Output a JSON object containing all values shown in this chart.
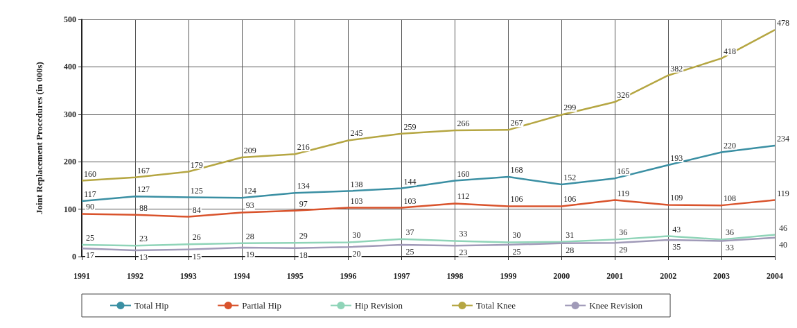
{
  "chart_data": {
    "type": "line",
    "ylabel": "Joint Replacement Procedures (in 000s)",
    "categories": [
      "1991",
      "1992",
      "1993",
      "1994",
      "1995",
      "1996",
      "1997",
      "1998",
      "1999",
      "2000",
      "2001",
      "2002",
      "2003",
      "2004"
    ],
    "series": [
      {
        "name": "Total Hip",
        "color": "#3a8fa3",
        "values": [
          117,
          127,
          125,
          124,
          134,
          138,
          144,
          160,
          168,
          152,
          165,
          193,
          220,
          234
        ]
      },
      {
        "name": "Partial Hip",
        "color": "#d9532c",
        "values": [
          90,
          88,
          84,
          93,
          97,
          103,
          103,
          112,
          106,
          106,
          119,
          109,
          108,
          119
        ]
      },
      {
        "name": "Hip Revision",
        "color": "#8fd4b8",
        "values": [
          25,
          23,
          26,
          28,
          29,
          30,
          37,
          33,
          30,
          31,
          36,
          43,
          36,
          46
        ]
      },
      {
        "name": "Total Knee",
        "color": "#b5a642",
        "values": [
          160,
          167,
          179,
          209,
          216,
          245,
          259,
          266,
          267,
          299,
          326,
          382,
          418,
          478
        ]
      },
      {
        "name": "Knee Revision",
        "color": "#a09ab8",
        "values": [
          17,
          13,
          15,
          19,
          18,
          20,
          25,
          23,
          25,
          28,
          29,
          35,
          33,
          40
        ]
      }
    ],
    "ylim": [
      0,
      500
    ],
    "yticks": [
      0,
      100,
      200,
      300,
      400,
      500
    ],
    "grid": true,
    "legend": "bottom",
    "data_labels": true
  }
}
